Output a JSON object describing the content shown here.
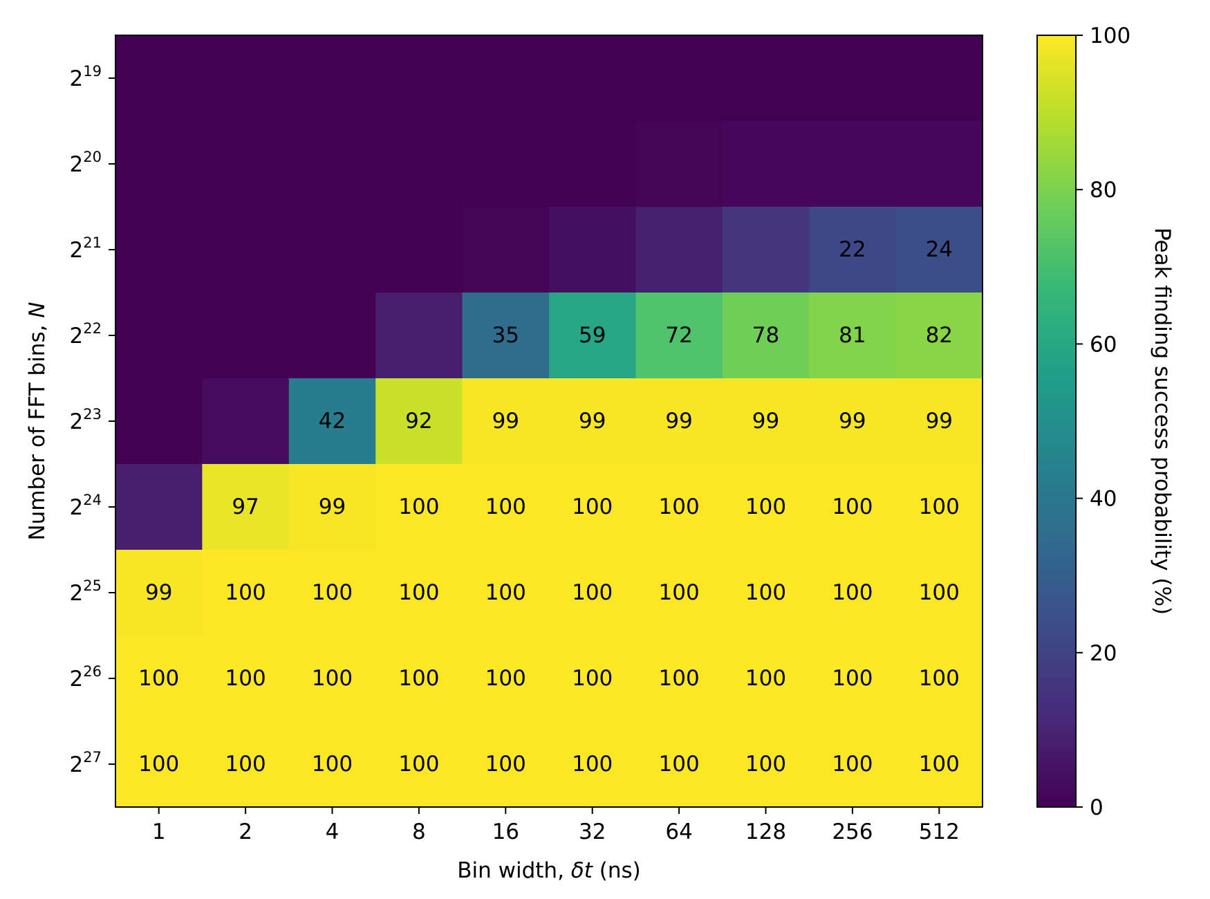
{
  "chart_data": {
    "type": "heatmap",
    "x": {
      "label_prefix": "Bin width, ",
      "label_symbol": "δt",
      "label_suffix": " (ns)",
      "categories": [
        "1",
        "2",
        "4",
        "8",
        "16",
        "32",
        "64",
        "128",
        "256",
        "512"
      ]
    },
    "y": {
      "label_prefix": "Number of FFT bins, ",
      "label_symbol": "N",
      "tick_base": "2",
      "tick_exponents": [
        "19",
        "20",
        "21",
        "22",
        "23",
        "24",
        "25",
        "26",
        "27"
      ]
    },
    "values": [
      [
        0,
        0,
        0,
        0,
        0,
        0,
        0,
        0,
        0,
        0
      ],
      [
        0,
        0,
        0,
        0,
        0,
        0,
        1,
        2,
        2,
        2
      ],
      [
        0,
        0,
        0,
        0,
        1,
        4,
        9,
        16,
        22,
        24
      ],
      [
        0,
        0,
        0,
        8,
        35,
        59,
        72,
        78,
        81,
        82
      ],
      [
        0,
        3,
        42,
        92,
        99,
        99,
        99,
        99,
        99,
        99
      ],
      [
        8,
        97,
        99,
        100,
        100,
        100,
        100,
        100,
        100,
        100
      ],
      [
        99,
        100,
        100,
        100,
        100,
        100,
        100,
        100,
        100,
        100
      ],
      [
        100,
        100,
        100,
        100,
        100,
        100,
        100,
        100,
        100,
        100
      ],
      [
        100,
        100,
        100,
        100,
        100,
        100,
        100,
        100,
        100,
        100
      ]
    ],
    "labels": [
      [
        "",
        "",
        "",
        "",
        "",
        "",
        "",
        "",
        "",
        ""
      ],
      [
        "",
        "",
        "",
        "",
        "",
        "",
        "",
        "",
        "",
        ""
      ],
      [
        "",
        "",
        "",
        "",
        "",
        "",
        "",
        "",
        "22",
        "24"
      ],
      [
        "",
        "",
        "",
        "",
        "35",
        "59",
        "72",
        "78",
        "81",
        "82"
      ],
      [
        "",
        "",
        "42",
        "92",
        "99",
        "99",
        "99",
        "99",
        "99",
        "99"
      ],
      [
        "",
        "97",
        "99",
        "100",
        "100",
        "100",
        "100",
        "100",
        "100",
        "100"
      ],
      [
        "99",
        "100",
        "100",
        "100",
        "100",
        "100",
        "100",
        "100",
        "100",
        "100"
      ],
      [
        "100",
        "100",
        "100",
        "100",
        "100",
        "100",
        "100",
        "100",
        "100",
        "100"
      ],
      [
        "100",
        "100",
        "100",
        "100",
        "100",
        "100",
        "100",
        "100",
        "100",
        "100"
      ]
    ],
    "colorbar": {
      "label": "Peak finding success probability (%)",
      "range": [
        0,
        100
      ],
      "ticks": [
        "0",
        "20",
        "40",
        "60",
        "80",
        "100"
      ],
      "colormap": "viridis",
      "colors": [
        "#440154",
        "#482878",
        "#3e4989",
        "#31688e",
        "#26828e",
        "#1f9e89",
        "#35b779",
        "#6ece58",
        "#b5de2b",
        "#fde725"
      ]
    },
    "title": "",
    "grid": false
  }
}
